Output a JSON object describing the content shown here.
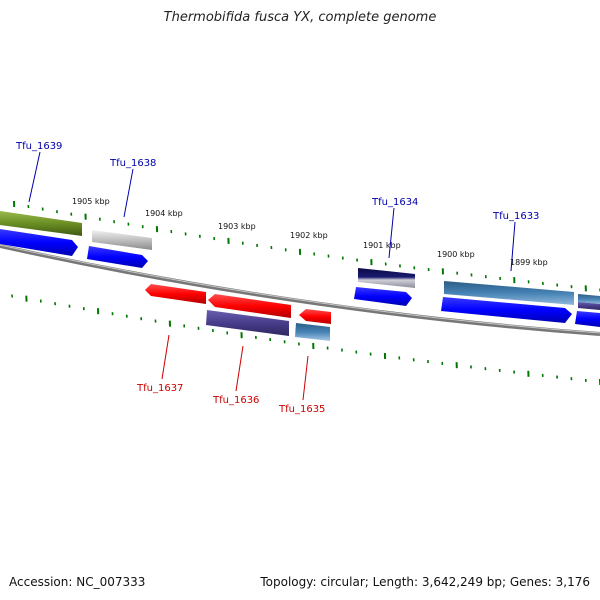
{
  "title": "Thermobifida fusca YX, complete genome",
  "footer": {
    "accession": "Accession: NC_007333",
    "stats": "Topology: circular; Length: 3,642,249 bp; Genes: 3,176"
  },
  "colors": {
    "forward_label": "#0000aa",
    "reverse_label": "#cc0000",
    "tick": "#007700",
    "backbone": "#777777"
  },
  "kbp_labels": [
    "1905 kbp",
    "1904 kbp",
    "1903 kbp",
    "1902 kbp",
    "1901 kbp",
    "1900 kbp",
    "1899 kbp"
  ],
  "forward_genes": [
    {
      "label": "Tfu_1639",
      "color": "#6b8e23"
    },
    {
      "label": "Tfu_1638",
      "color": "#c0c0c0"
    },
    {
      "label": "Tfu_1634",
      "color": "#1a1a70"
    },
    {
      "label": "Tfu_1633",
      "color": "#4682b4"
    }
  ],
  "reverse_genes": [
    {
      "label": "Tfu_1637",
      "color": "#ff0000"
    },
    {
      "label": "Tfu_1636",
      "color": "#483d8b"
    },
    {
      "label": "Tfu_1635",
      "color": "#4682b4"
    }
  ]
}
